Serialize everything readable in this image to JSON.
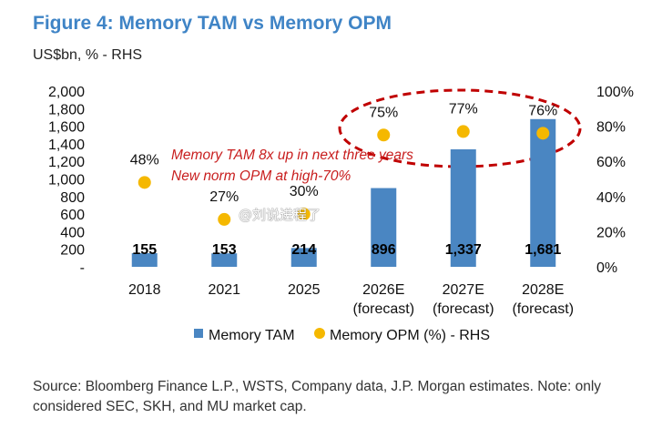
{
  "title": "Figure 4: Memory TAM vs Memory OPM",
  "subtitle": "US$bn, % - RHS",
  "annotations": {
    "line1": "Memory TAM 8x up in next three years",
    "line2": "New norm OPM at high-70%"
  },
  "watermark": "@刘说进程了",
  "source": "Source: Bloomberg Finance L.P., WSTS, Company data, J.P. Morgan estimates. Note: only considered SEC, SKH, and MU market cap.",
  "colors": {
    "title": "#3f84c6",
    "bar": "#4a86c2",
    "dot": "#f5b800",
    "annotation": "#c81e1e",
    "highlight_ellipse": "#c00000"
  },
  "chart_data": {
    "type": "bar",
    "categories": [
      [
        "2018"
      ],
      [
        "2021"
      ],
      [
        "2025"
      ],
      [
        "2026E",
        "(forecast)"
      ],
      [
        "2027E",
        "(forecast)"
      ],
      [
        "2028E",
        "(forecast)"
      ]
    ],
    "series": [
      {
        "name": "Memory TAM",
        "type": "bar",
        "axis": "left",
        "values": [
          155,
          153,
          214,
          896,
          1337,
          1681
        ],
        "labels": [
          "155",
          "153",
          "214",
          "896",
          "1,337",
          "1,681"
        ]
      },
      {
        "name": "Memory OPM (%) - RHS",
        "type": "scatter",
        "axis": "right",
        "values": [
          48,
          27,
          30,
          75,
          77,
          76
        ],
        "labels": [
          "48%",
          "27%",
          "30%",
          "75%",
          "77%",
          "76%"
        ]
      }
    ],
    "y_left": {
      "ylim": [
        0,
        2000
      ],
      "ticks": [
        "-",
        "200",
        "400",
        "600",
        "800",
        "1,000",
        "1,200",
        "1,400",
        "1,600",
        "1,800",
        "2,000"
      ]
    },
    "y_right": {
      "ylim": [
        0,
        100
      ],
      "ticks": [
        "0%",
        "20%",
        "40%",
        "60%",
        "80%",
        "100%"
      ]
    },
    "legend": [
      "Memory TAM",
      "Memory OPM (%) - RHS"
    ],
    "legend_position": "bottom",
    "grid": false
  }
}
